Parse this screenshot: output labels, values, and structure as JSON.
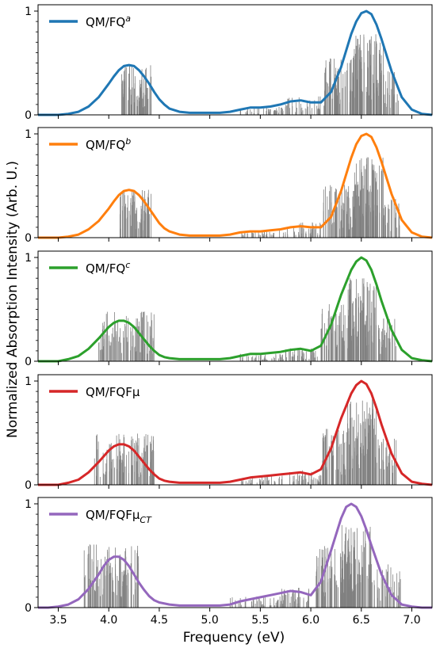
{
  "figure": {
    "xlabel": "Frequency (eV)",
    "ylabel": "Normalized Absorption Intensity (Arb. U.)"
  },
  "chart_data": [
    {
      "type": "line",
      "legend_placement": "top-left",
      "series": [
        {
          "name": "QM/FQ",
          "name_sup": "a",
          "color": "#1f77b4"
        }
      ],
      "x": [
        3.3,
        3.4,
        3.5,
        3.6,
        3.7,
        3.8,
        3.9,
        4.0,
        4.05,
        4.1,
        4.15,
        4.2,
        4.25,
        4.3,
        4.35,
        4.4,
        4.45,
        4.5,
        4.55,
        4.6,
        4.7,
        4.8,
        4.9,
        5.0,
        5.1,
        5.2,
        5.3,
        5.4,
        5.5,
        5.6,
        5.7,
        5.8,
        5.9,
        6.0,
        6.1,
        6.2,
        6.3,
        6.4,
        6.45,
        6.5,
        6.55,
        6.6,
        6.65,
        6.7,
        6.8,
        6.9,
        7.0,
        7.1,
        7.2
      ],
      "y": [
        0.0,
        0.0,
        0.0,
        0.01,
        0.03,
        0.08,
        0.17,
        0.3,
        0.37,
        0.43,
        0.47,
        0.48,
        0.47,
        0.43,
        0.37,
        0.3,
        0.22,
        0.15,
        0.1,
        0.06,
        0.03,
        0.02,
        0.02,
        0.02,
        0.02,
        0.03,
        0.05,
        0.07,
        0.07,
        0.08,
        0.1,
        0.13,
        0.14,
        0.12,
        0.12,
        0.22,
        0.46,
        0.78,
        0.9,
        0.98,
        1.0,
        0.97,
        0.87,
        0.73,
        0.42,
        0.17,
        0.05,
        0.01,
        0.0
      ],
      "sticks": {
        "color": "#808080",
        "clusters": [
          {
            "lo": 4.12,
            "hi": 4.42,
            "count": 70,
            "h": 0.48
          },
          {
            "lo": 5.3,
            "hi": 5.75,
            "count": 40,
            "h": 0.08
          },
          {
            "lo": 5.75,
            "hi": 6.1,
            "count": 40,
            "h": 0.18
          },
          {
            "lo": 6.12,
            "hi": 6.42,
            "count": 60,
            "h": 0.55
          },
          {
            "lo": 6.42,
            "hi": 6.72,
            "count": 90,
            "h": 0.78
          },
          {
            "lo": 6.72,
            "hi": 6.88,
            "count": 25,
            "h": 0.45
          }
        ]
      },
      "xlim": [
        3.3,
        7.2
      ],
      "ylim": [
        0,
        1.0
      ],
      "yticks": [
        0,
        1
      ],
      "xticks": [
        3.5,
        4.0,
        4.5,
        5.0,
        5.5,
        6.0,
        6.5,
        7.0
      ],
      "show_xticklabels": false
    },
    {
      "type": "line",
      "legend_placement": "top-left",
      "series": [
        {
          "name": "QM/FQ",
          "name_sup": "b",
          "color": "#ff7f0e"
        }
      ],
      "x": [
        3.3,
        3.4,
        3.5,
        3.6,
        3.7,
        3.8,
        3.9,
        4.0,
        4.05,
        4.1,
        4.15,
        4.2,
        4.25,
        4.3,
        4.35,
        4.4,
        4.45,
        4.5,
        4.55,
        4.6,
        4.7,
        4.8,
        4.9,
        5.0,
        5.1,
        5.2,
        5.3,
        5.4,
        5.5,
        5.6,
        5.7,
        5.8,
        5.9,
        6.0,
        6.1,
        6.2,
        6.3,
        6.4,
        6.45,
        6.5,
        6.55,
        6.6,
        6.65,
        6.7,
        6.8,
        6.9,
        7.0,
        7.1,
        7.2
      ],
      "y": [
        0.0,
        0.0,
        0.0,
        0.01,
        0.03,
        0.08,
        0.16,
        0.28,
        0.35,
        0.41,
        0.45,
        0.46,
        0.45,
        0.41,
        0.35,
        0.28,
        0.21,
        0.14,
        0.09,
        0.06,
        0.03,
        0.02,
        0.02,
        0.02,
        0.02,
        0.03,
        0.05,
        0.06,
        0.06,
        0.07,
        0.08,
        0.1,
        0.11,
        0.1,
        0.1,
        0.2,
        0.45,
        0.77,
        0.9,
        0.98,
        1.0,
        0.97,
        0.87,
        0.73,
        0.42,
        0.17,
        0.05,
        0.01,
        0.0
      ],
      "sticks": {
        "color": "#808080",
        "clusters": [
          {
            "lo": 4.1,
            "hi": 4.42,
            "count": 70,
            "h": 0.47
          },
          {
            "lo": 5.3,
            "hi": 5.75,
            "count": 40,
            "h": 0.07
          },
          {
            "lo": 5.75,
            "hi": 6.1,
            "count": 40,
            "h": 0.15
          },
          {
            "lo": 6.12,
            "hi": 6.42,
            "count": 60,
            "h": 0.52
          },
          {
            "lo": 6.42,
            "hi": 6.72,
            "count": 90,
            "h": 0.78
          },
          {
            "lo": 6.72,
            "hi": 6.88,
            "count": 25,
            "h": 0.4
          }
        ]
      },
      "xlim": [
        3.3,
        7.2
      ],
      "ylim": [
        0,
        1.0
      ],
      "yticks": [
        0,
        1
      ],
      "xticks": [
        3.5,
        4.0,
        4.5,
        5.0,
        5.5,
        6.0,
        6.5,
        7.0
      ],
      "show_xticklabels": false
    },
    {
      "type": "line",
      "legend_placement": "top-left",
      "series": [
        {
          "name": "QM/FQ",
          "name_sup": "c",
          "color": "#2ca02c"
        }
      ],
      "x": [
        3.3,
        3.4,
        3.5,
        3.6,
        3.7,
        3.8,
        3.9,
        4.0,
        4.05,
        4.1,
        4.15,
        4.2,
        4.25,
        4.3,
        4.35,
        4.4,
        4.45,
        4.5,
        4.55,
        4.6,
        4.7,
        4.8,
        4.9,
        5.0,
        5.1,
        5.2,
        5.3,
        5.4,
        5.5,
        5.6,
        5.7,
        5.8,
        5.9,
        6.0,
        6.1,
        6.2,
        6.3,
        6.4,
        6.45,
        6.5,
        6.55,
        6.6,
        6.65,
        6.7,
        6.8,
        6.9,
        7.0,
        7.1,
        7.2
      ],
      "y": [
        0.0,
        0.0,
        0.0,
        0.02,
        0.05,
        0.12,
        0.22,
        0.33,
        0.37,
        0.39,
        0.39,
        0.37,
        0.33,
        0.27,
        0.21,
        0.15,
        0.1,
        0.06,
        0.04,
        0.03,
        0.02,
        0.02,
        0.02,
        0.02,
        0.02,
        0.03,
        0.05,
        0.07,
        0.07,
        0.08,
        0.09,
        0.11,
        0.12,
        0.1,
        0.15,
        0.35,
        0.64,
        0.88,
        0.96,
        1.0,
        0.97,
        0.88,
        0.74,
        0.58,
        0.3,
        0.11,
        0.03,
        0.01,
        0.0
      ],
      "sticks": {
        "color": "#808080",
        "clusters": [
          {
            "lo": 3.9,
            "hi": 4.45,
            "count": 90,
            "h": 0.48
          },
          {
            "lo": 5.3,
            "hi": 5.75,
            "count": 40,
            "h": 0.08
          },
          {
            "lo": 5.75,
            "hi": 6.1,
            "count": 40,
            "h": 0.13
          },
          {
            "lo": 6.1,
            "hi": 6.35,
            "count": 50,
            "h": 0.55
          },
          {
            "lo": 6.35,
            "hi": 6.65,
            "count": 90,
            "h": 0.82
          },
          {
            "lo": 6.65,
            "hi": 6.85,
            "count": 30,
            "h": 0.42
          }
        ]
      },
      "xlim": [
        3.3,
        7.2
      ],
      "ylim": [
        0,
        1.0
      ],
      "yticks": [
        0,
        1
      ],
      "xticks": [
        3.5,
        4.0,
        4.5,
        5.0,
        5.5,
        6.0,
        6.5,
        7.0
      ],
      "show_xticklabels": false
    },
    {
      "type": "line",
      "legend_placement": "top-left",
      "series": [
        {
          "name": "QM/FQFμ",
          "color": "#d62728"
        }
      ],
      "x": [
        3.3,
        3.4,
        3.5,
        3.6,
        3.7,
        3.8,
        3.9,
        4.0,
        4.05,
        4.1,
        4.15,
        4.2,
        4.25,
        4.3,
        4.35,
        4.4,
        4.45,
        4.5,
        4.55,
        4.6,
        4.7,
        4.8,
        4.9,
        5.0,
        5.1,
        5.2,
        5.3,
        5.4,
        5.5,
        5.6,
        5.7,
        5.8,
        5.9,
        6.0,
        6.1,
        6.2,
        6.3,
        6.4,
        6.45,
        6.5,
        6.55,
        6.6,
        6.65,
        6.7,
        6.8,
        6.9,
        7.0,
        7.1,
        7.2
      ],
      "y": [
        0.0,
        0.0,
        0.0,
        0.02,
        0.05,
        0.12,
        0.22,
        0.33,
        0.37,
        0.39,
        0.39,
        0.37,
        0.33,
        0.27,
        0.21,
        0.15,
        0.1,
        0.06,
        0.04,
        0.03,
        0.02,
        0.02,
        0.02,
        0.02,
        0.02,
        0.03,
        0.05,
        0.07,
        0.08,
        0.09,
        0.1,
        0.11,
        0.12,
        0.1,
        0.15,
        0.35,
        0.64,
        0.88,
        0.96,
        1.0,
        0.97,
        0.88,
        0.74,
        0.58,
        0.3,
        0.11,
        0.03,
        0.01,
        0.0
      ],
      "sticks": {
        "color": "#808080",
        "clusters": [
          {
            "lo": 3.85,
            "hi": 4.45,
            "count": 100,
            "h": 0.5
          },
          {
            "lo": 5.3,
            "hi": 5.75,
            "count": 40,
            "h": 0.09
          },
          {
            "lo": 5.75,
            "hi": 6.1,
            "count": 40,
            "h": 0.14
          },
          {
            "lo": 6.1,
            "hi": 6.35,
            "count": 50,
            "h": 0.55
          },
          {
            "lo": 6.35,
            "hi": 6.65,
            "count": 90,
            "h": 0.85
          },
          {
            "lo": 6.65,
            "hi": 6.85,
            "count": 30,
            "h": 0.45
          }
        ]
      },
      "xlim": [
        3.3,
        7.2
      ],
      "ylim": [
        0,
        1.0
      ],
      "yticks": [
        0,
        1
      ],
      "xticks": [
        3.5,
        4.0,
        4.5,
        5.0,
        5.5,
        6.0,
        6.5,
        7.0
      ],
      "show_xticklabels": false
    },
    {
      "type": "line",
      "legend_placement": "top-left",
      "series": [
        {
          "name": "QM/FQFμ",
          "name_sub": "CT",
          "color": "#9467bd"
        }
      ],
      "x": [
        3.3,
        3.4,
        3.5,
        3.6,
        3.7,
        3.8,
        3.9,
        3.95,
        4.0,
        4.05,
        4.1,
        4.15,
        4.2,
        4.25,
        4.3,
        4.35,
        4.4,
        4.45,
        4.5,
        4.6,
        4.7,
        4.8,
        4.9,
        5.0,
        5.1,
        5.2,
        5.3,
        5.4,
        5.5,
        5.6,
        5.7,
        5.8,
        5.9,
        6.0,
        6.1,
        6.2,
        6.3,
        6.35,
        6.4,
        6.45,
        6.5,
        6.55,
        6.6,
        6.7,
        6.8,
        6.9,
        7.0,
        7.1,
        7.2
      ],
      "y": [
        0.0,
        0.0,
        0.01,
        0.03,
        0.08,
        0.18,
        0.32,
        0.4,
        0.46,
        0.49,
        0.49,
        0.46,
        0.4,
        0.32,
        0.24,
        0.17,
        0.11,
        0.07,
        0.05,
        0.03,
        0.02,
        0.02,
        0.02,
        0.02,
        0.02,
        0.03,
        0.06,
        0.08,
        0.1,
        0.12,
        0.14,
        0.16,
        0.15,
        0.12,
        0.25,
        0.55,
        0.86,
        0.97,
        1.0,
        0.97,
        0.88,
        0.75,
        0.6,
        0.32,
        0.12,
        0.03,
        0.01,
        0.0,
        0.0
      ],
      "sticks": {
        "color": "#808080",
        "clusters": [
          {
            "lo": 3.75,
            "hi": 4.3,
            "count": 100,
            "h": 0.62
          },
          {
            "lo": 5.2,
            "hi": 5.7,
            "count": 50,
            "h": 0.12
          },
          {
            "lo": 5.7,
            "hi": 6.0,
            "count": 40,
            "h": 0.2
          },
          {
            "lo": 6.05,
            "hi": 6.3,
            "count": 50,
            "h": 0.6
          },
          {
            "lo": 6.3,
            "hi": 6.6,
            "count": 90,
            "h": 0.8
          },
          {
            "lo": 6.6,
            "hi": 6.9,
            "count": 40,
            "h": 0.42
          }
        ]
      },
      "xlim": [
        3.3,
        7.2
      ],
      "ylim": [
        0,
        1.0
      ],
      "yticks": [
        0,
        1
      ],
      "xticks": [
        3.5,
        4.0,
        4.5,
        5.0,
        5.5,
        6.0,
        6.5,
        7.0
      ],
      "xticklabels": [
        "3.5",
        "4.0",
        "4.5",
        "5.0",
        "5.5",
        "6.0",
        "6.5",
        "7.0"
      ],
      "show_xticklabels": true
    }
  ]
}
